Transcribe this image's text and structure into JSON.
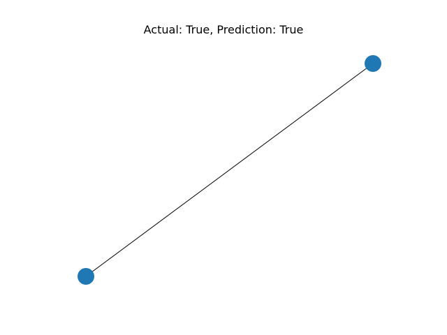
{
  "figure": {
    "title": "Actual: True, Prediction: True"
  },
  "graph": {
    "node_color": "#1f77b4",
    "edge_color": "#000000",
    "nodes": [
      {
        "id": "n0"
      },
      {
        "id": "n1"
      }
    ],
    "edges": [
      {
        "source": "n0",
        "target": "n1"
      }
    ]
  }
}
